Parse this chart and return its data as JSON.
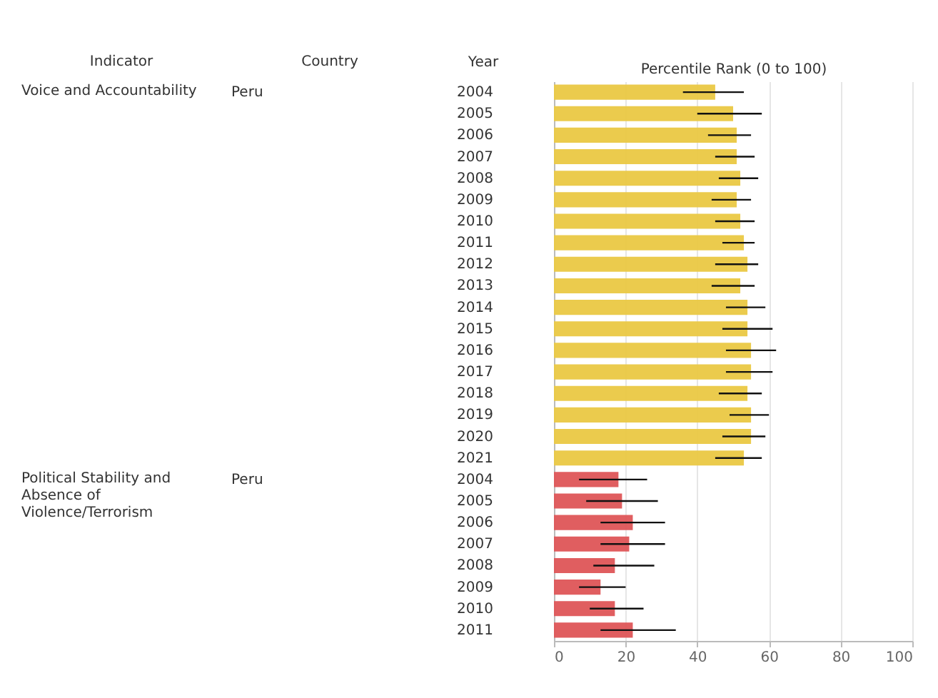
{
  "chart_data": {
    "type": "bar",
    "orientation": "horizontal",
    "xlabel": "Percentile Rank (0 to 100)",
    "ylabel": "Year",
    "annotations": [
      "Indicator",
      "Country",
      "Voice and Accountability",
      "Peru",
      "Political Stability and Absence of Violence/Terrorism",
      "Peru"
    ],
    "categories": [
      "2004",
      "2005",
      "2006",
      "2007",
      "2008",
      "2009",
      "2010",
      "2011",
      "2012",
      "2013",
      "2014",
      "2015",
      "2016",
      "2017",
      "2018",
      "2019",
      "2020",
      "2021",
      "2004",
      "2005",
      "2006",
      "2007",
      "2008",
      "2009",
      "2010",
      "2011"
    ],
    "series": [
      {
        "color": "#eac843",
        "values": [
          45,
          50,
          51,
          51,
          52,
          51,
          52,
          53,
          54,
          52,
          54,
          54,
          55,
          55,
          54,
          55,
          55,
          53,
          null,
          null,
          null,
          null,
          null,
          null,
          null,
          null
        ],
        "errors": [
          [
            36,
            53
          ],
          [
            40,
            58
          ],
          [
            43,
            55
          ],
          [
            45,
            56
          ],
          [
            46,
            57
          ],
          [
            44,
            55
          ],
          [
            45,
            56
          ],
          [
            47,
            56
          ],
          [
            45,
            57
          ],
          [
            44,
            56
          ],
          [
            48,
            59
          ],
          [
            47,
            61
          ],
          [
            48,
            62
          ],
          [
            48,
            61
          ],
          [
            46,
            58
          ],
          [
            49,
            60
          ],
          [
            47,
            59
          ],
          [
            45,
            58
          ],
          null,
          null,
          null,
          null,
          null,
          null,
          null,
          null
        ]
      },
      {
        "color": "#de5557",
        "values": [
          null,
          null,
          null,
          null,
          null,
          null,
          null,
          null,
          null,
          null,
          null,
          null,
          null,
          null,
          null,
          null,
          null,
          null,
          18,
          19,
          22,
          21,
          17,
          13,
          17,
          22
        ],
        "errors": [
          null,
          null,
          null,
          null,
          null,
          null,
          null,
          null,
          null,
          null,
          null,
          null,
          null,
          null,
          null,
          null,
          null,
          null,
          [
            7,
            26
          ],
          [
            9,
            29
          ],
          [
            13,
            31
          ],
          [
            13,
            31
          ],
          [
            11,
            28
          ],
          [
            7,
            20
          ],
          [
            10,
            25
          ],
          [
            13,
            34
          ]
        ]
      }
    ],
    "xlim": [
      0,
      100
    ],
    "xticks": [
      0,
      20,
      40,
      60,
      80,
      100
    ],
    "grid": "x",
    "legend": false
  }
}
